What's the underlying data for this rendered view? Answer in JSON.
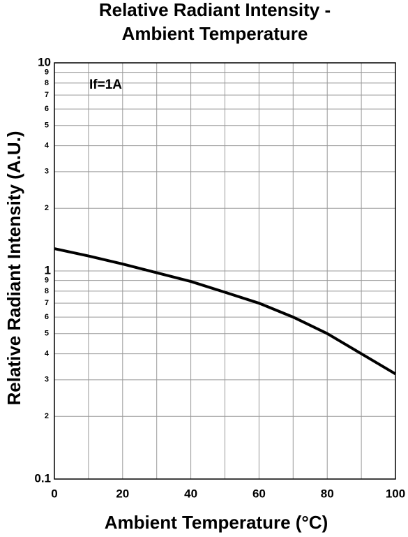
{
  "chart_data": {
    "type": "line",
    "title": [
      "Relative Radiant Intensity -",
      "Ambient Temperature"
    ],
    "x_label": "Ambient Temperature (°C)",
    "y_label": "Relative Radiant Intensity (A.U.)",
    "annotation": "If=1A",
    "y_scale": "log",
    "grid": true,
    "x": [
      0,
      10,
      20,
      30,
      40,
      50,
      60,
      70,
      80,
      90,
      100
    ],
    "series": [
      {
        "name": "If=1A",
        "color": "#000000",
        "values": [
          1.28,
          1.18,
          1.08,
          0.98,
          0.89,
          0.79,
          0.7,
          0.6,
          0.5,
          0.4,
          0.32
        ]
      }
    ],
    "xlim": [
      0,
      100
    ],
    "xticks": [
      0,
      20,
      40,
      60,
      80,
      100
    ],
    "ylim": [
      0.1,
      10
    ],
    "yticks": [
      0.1,
      {
        "value": 0.2,
        "label": "2"
      },
      {
        "value": 0.3,
        "label": "3"
      },
      {
        "value": 0.4,
        "label": "4"
      },
      {
        "value": 0.5,
        "label": "5"
      },
      {
        "value": 0.6,
        "label": "6"
      },
      {
        "value": 0.7,
        "label": "7"
      },
      {
        "value": 0.8,
        "label": "8"
      },
      {
        "value": 0.9,
        "label": "9"
      },
      1,
      {
        "value": 2,
        "label": "2"
      },
      {
        "value": 3,
        "label": "3"
      },
      {
        "value": 4,
        "label": "4"
      },
      {
        "value": 5,
        "label": "5"
      },
      {
        "value": 6,
        "label": "6"
      },
      {
        "value": 7,
        "label": "7"
      },
      {
        "value": 8,
        "label": "8"
      },
      {
        "value": 9,
        "label": "9"
      },
      10
    ]
  }
}
